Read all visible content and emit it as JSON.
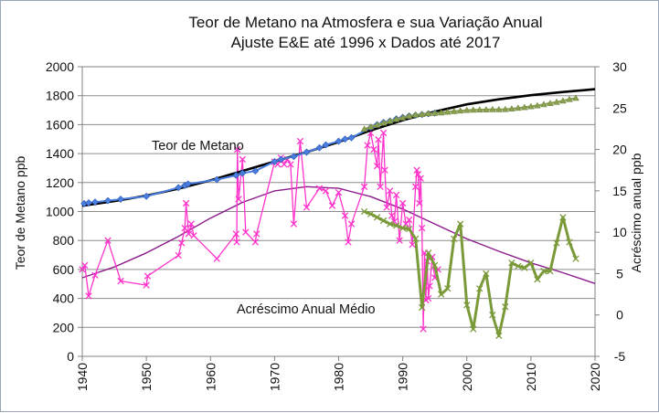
{
  "chart_data": {
    "type": "line",
    "title_line1": "Teor de Metano na Atmosfera e sua Variação Anual",
    "title_line2": "Ajuste E&E até 1996 x Dados até 2017",
    "ylabel_left": "Teor de Metano ppb",
    "ylabel_right": "Acréscimo anual ppb",
    "xlim": [
      1940,
      2020
    ],
    "ylim_left": [
      0,
      2000
    ],
    "ylim_right": [
      -5,
      30
    ],
    "xticks": [
      "1940",
      "1950",
      "1960",
      "1970",
      "1980",
      "1990",
      "2000",
      "2010",
      "2020"
    ],
    "yticks_left": [
      "0",
      "200",
      "400",
      "600",
      "800",
      "1000",
      "1200",
      "1400",
      "1600",
      "1800",
      "2000"
    ],
    "yticks_right": [
      "-5",
      "0",
      "5",
      "10",
      "15",
      "20",
      "25",
      "30"
    ],
    "annotations": {
      "methane": "Teor de Metano",
      "increment": "Acréscimo Anual Médio"
    },
    "colors": {
      "fit": "#000000",
      "ice_core": "#4a7fe0",
      "measured": "#8aa050",
      "increment_data": "#ff33cc",
      "increment_fit": "#8b1a8b",
      "increment_measured": "#7a9a3a"
    },
    "series": [
      {
        "id": "methane_fit",
        "axis": "left",
        "style": "line",
        "x": [
          1940,
          1945,
          1950,
          1955,
          1960,
          1965,
          1970,
          1975,
          1980,
          1985,
          1990,
          1995,
          2000,
          2005,
          2010,
          2015,
          2020
        ],
        "y": [
          1040,
          1072,
          1110,
          1158,
          1215,
          1280,
          1345,
          1410,
          1480,
          1560,
          1630,
          1690,
          1740,
          1775,
          1803,
          1825,
          1845
        ]
      },
      {
        "id": "methane_ice_core",
        "axis": "left",
        "style": "diamond",
        "x": [
          1940.3,
          1941,
          1942,
          1944,
          1946,
          1950,
          1955,
          1956,
          1956.5,
          1961,
          1964,
          1965,
          1967,
          1970,
          1971,
          1973,
          1975,
          1977,
          1978,
          1980,
          1981,
          1982,
          1985,
          1986,
          1987,
          1988,
          1989,
          1990,
          1991,
          1992,
          1993,
          1994,
          1995
        ],
        "y": [
          1055,
          1060,
          1065,
          1075,
          1085,
          1105,
          1165,
          1180,
          1190,
          1220,
          1250,
          1265,
          1280,
          1345,
          1360,
          1380,
          1410,
          1440,
          1460,
          1485,
          1500,
          1510,
          1580,
          1600,
          1615,
          1625,
          1640,
          1650,
          1660,
          1665,
          1670,
          1675,
          1680
        ]
      },
      {
        "id": "methane_measured",
        "axis": "left",
        "style": "triangle",
        "x": [
          1984,
          1985,
          1986,
          1987,
          1988,
          1989,
          1990,
          1991,
          1992,
          1993,
          1994,
          1995,
          1996,
          1997,
          1998,
          1999,
          2000,
          2001,
          2002,
          2003,
          2004,
          2005,
          2006,
          2007,
          2008,
          2009,
          2010,
          2011,
          2012,
          2013,
          2014,
          2015,
          2016,
          2017
        ],
        "y": [
          1570,
          1585,
          1598,
          1612,
          1625,
          1638,
          1648,
          1660,
          1668,
          1672,
          1677,
          1680,
          1683,
          1688,
          1692,
          1696,
          1700,
          1702,
          1703,
          1704,
          1705,
          1705,
          1706,
          1710,
          1715,
          1720,
          1726,
          1732,
          1740,
          1748,
          1756,
          1765,
          1775,
          1784
        ]
      },
      {
        "id": "increment_fit",
        "axis": "right",
        "style": "line",
        "x": [
          1940,
          1945,
          1950,
          1955,
          1960,
          1965,
          1970,
          1975,
          1980,
          1985,
          1990,
          1995,
          2000,
          2005,
          2010,
          2015,
          2020
        ],
        "y": [
          4.5,
          5.8,
          7.5,
          9.5,
          11.7,
          13.6,
          15.0,
          15.5,
          15.3,
          14.3,
          12.8,
          11.0,
          9.2,
          7.7,
          6.3,
          5.1,
          3.8
        ]
      },
      {
        "id": "increment_data",
        "axis": "right",
        "style": "x-line",
        "x": [
          1940,
          1940.4,
          1941,
          1942,
          1944,
          1946,
          1950,
          1950.2,
          1955,
          1955.5,
          1956,
          1956.2,
          1956.6,
          1957,
          1957.4,
          1961,
          1964,
          1964.1,
          1964.2,
          1964.4,
          1965,
          1965.5,
          1967,
          1967.2,
          1970,
          1970.5,
          1971,
          1971.5,
          1972,
          1972.5,
          1973,
          1974,
          1975,
          1977,
          1978,
          1979,
          1980,
          1981,
          1981.5,
          1982,
          1984,
          1984.5,
          1985,
          1985.5,
          1986,
          1986.2,
          1986.5,
          1987,
          1987.2,
          1987.5,
          1988,
          1988.3,
          1988.7,
          1989,
          1989.5,
          1990,
          1990.5,
          1991,
          1991.5,
          1992,
          1992.2,
          1992.4,
          1992.6,
          1992.8,
          1993,
          1993.2,
          1993.4,
          1993.6,
          1993.8,
          1994,
          1994.2,
          1994.6,
          1995,
          1995.5
        ],
        "y": [
          5.5,
          6.0,
          2.3,
          4.8,
          9.0,
          4.1,
          3.6,
          4.7,
          7.2,
          8.7,
          10.5,
          13.5,
          9.8,
          11.0,
          9.6,
          6.8,
          9.8,
          8.8,
          20.0,
          14.0,
          18.8,
          10.0,
          8.8,
          9.8,
          18.5,
          18.2,
          19.0,
          18.2,
          18.8,
          18.2,
          11.0,
          21.0,
          13.0,
          15.3,
          15.0,
          13.2,
          14.8,
          12.0,
          8.8,
          11.0,
          15.5,
          20.5,
          22.0,
          20.0,
          18.0,
          21.2,
          15.5,
          22.0,
          17.5,
          13.0,
          15.0,
          12.0,
          11.3,
          14.5,
          9.0,
          13.5,
          11.0,
          11.5,
          8.5,
          15.5,
          17.5,
          17.0,
          13.5,
          16.5,
          10.5,
          -1.7,
          7.5,
          1.8,
          6.5,
          2.0,
          3.5,
          7.0,
          4.5,
          5.5
        ]
      },
      {
        "id": "increment_measured",
        "axis": "right",
        "style": "x-line",
        "x": [
          1984,
          1985,
          1986,
          1987,
          1988,
          1989,
          1990,
          1991,
          1992,
          1993,
          1994,
          1995,
          1996,
          1997,
          1998,
          1999,
          2000,
          2001,
          2002,
          2003,
          2004,
          2005,
          2006,
          2007,
          2008,
          2009,
          2010,
          2011,
          2012,
          2013,
          2014,
          2015,
          2016,
          2017
        ],
        "y": [
          12.5,
          12.2,
          11.8,
          11.4,
          11.0,
          10.8,
          10.5,
          10.4,
          9.2,
          0.9,
          7.5,
          6.0,
          2.5,
          3.2,
          9.2,
          11.0,
          1.2,
          -1.7,
          3.2,
          5.0,
          0.0,
          -2.5,
          1.0,
          6.3,
          5.9,
          5.7,
          6.3,
          4.3,
          5.3,
          5.3,
          8.7,
          11.8,
          8.8,
          6.8
        ]
      }
    ]
  }
}
